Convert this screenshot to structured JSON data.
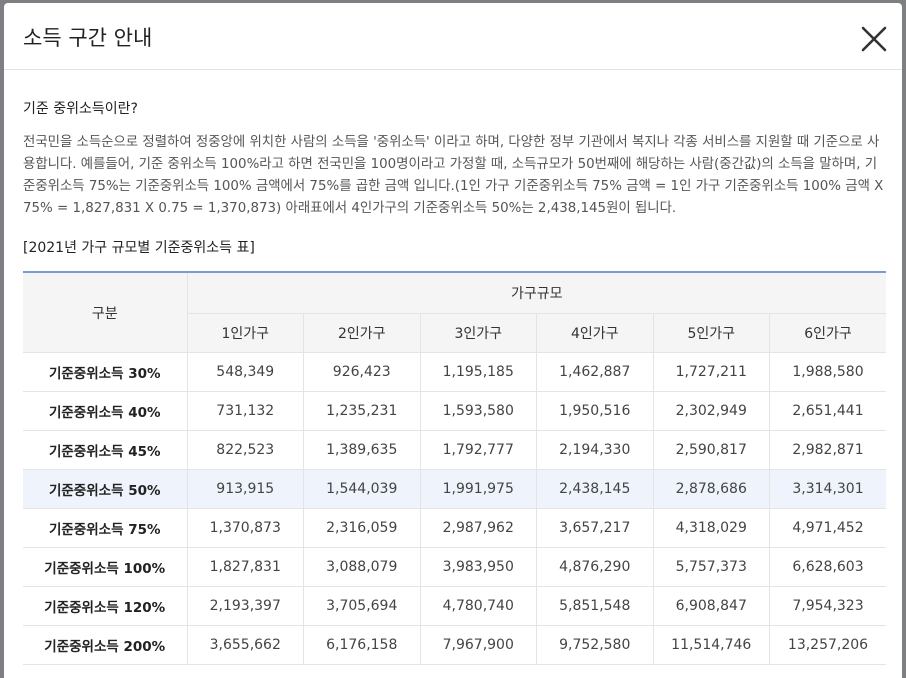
{
  "header": {
    "title": "소득 구간 안내"
  },
  "section": {
    "heading": "기준 중위소득이란?",
    "body": "전국민을 소득순으로 정렬하여 정중앙에 위치한 사람의 소득을 '중위소득' 이라고 하며, 다양한 정부 기관에서 복지나 각종 서비스를 지원할 때 기준으로 사용합니다. 예를들어, 기준 중위소득 100%라고 하면 전국민을 100명이라고 가정할 때, 소득규모가 50번째에 해당하는 사람(중간값)의 소득을 말하며, 기준중위소득 75%는 기준중위소득 100% 금액에서 75%를 곱한 금액 입니다.(1인 가구 기준중위소득 75% 금액 = 1인 가구 기준중위소득 100% 금액 X 75% = 1,827,831 X 0.75 = 1,370,873) 아래표에서 4인가구의 기준중위소득 50%는 2,438,145원이 됩니다."
  },
  "table": {
    "caption": "[2021년 가구 규모별 기준중위소득 표]",
    "corner": "구분",
    "group_header": "가구규모",
    "columns": [
      "1인가구",
      "2인가구",
      "3인가구",
      "4인가구",
      "5인가구",
      "6인가구"
    ],
    "rows": [
      {
        "label": "기준중위소득 30%",
        "values": [
          "548,349",
          "926,423",
          "1,195,185",
          "1,462,887",
          "1,727,211",
          "1,988,580"
        ]
      },
      {
        "label": "기준중위소득 40%",
        "values": [
          "731,132",
          "1,235,231",
          "1,593,580",
          "1,950,516",
          "2,302,949",
          "2,651,441"
        ]
      },
      {
        "label": "기준중위소득 45%",
        "values": [
          "822,523",
          "1,389,635",
          "1,792,777",
          "2,194,330",
          "2,590,817",
          "2,982,871"
        ]
      },
      {
        "label": "기준중위소득 50%",
        "values": [
          "913,915",
          "1,544,039",
          "1,991,975",
          "2,438,145",
          "2,878,686",
          "3,314,301"
        ]
      },
      {
        "label": "기준중위소득 75%",
        "values": [
          "1,370,873",
          "2,316,059",
          "2,987,962",
          "3,657,217",
          "4,318,029",
          "4,971,452"
        ]
      },
      {
        "label": "기준중위소득 100%",
        "values": [
          "1,827,831",
          "3,088,079",
          "3,983,950",
          "4,876,290",
          "5,757,373",
          "6,628,603"
        ]
      },
      {
        "label": "기준중위소득 120%",
        "values": [
          "2,193,397",
          "3,705,694",
          "4,780,740",
          "5,851,548",
          "6,908,847",
          "7,954,323"
        ]
      },
      {
        "label": "기준중위소득 200%",
        "values": [
          "3,655,662",
          "6,176,158",
          "7,967,900",
          "9,752,580",
          "11,514,746",
          "13,257,206"
        ]
      }
    ]
  }
}
